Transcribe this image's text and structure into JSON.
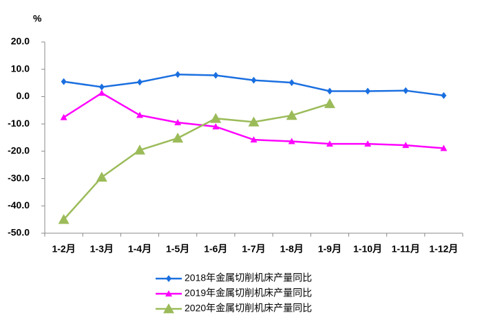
{
  "chart_data": {
    "type": "line",
    "y_label": "%",
    "categories": [
      "1-2月",
      "1-3月",
      "1-4月",
      "1-5月",
      "1-6月",
      "1-7月",
      "1-8月",
      "1-9月",
      "1-10月",
      "1-11月",
      "1-12月"
    ],
    "series": [
      {
        "name": "2018年金属切削机床产量同比",
        "color": "#1a6fe0",
        "marker": "diamond",
        "values": [
          5.5,
          3.5,
          5.3,
          8.1,
          7.8,
          6.0,
          5.1,
          2.0,
          2.0,
          2.2,
          0.4
        ]
      },
      {
        "name": "2019年金属切削机床产量同比",
        "color": "#ff00ff",
        "marker": "triangle",
        "values": [
          -7.6,
          1.3,
          -6.8,
          -9.5,
          -11.0,
          -15.8,
          -16.4,
          -17.3,
          -17.3,
          -17.8,
          -18.9
        ]
      },
      {
        "name": "2020年金属切削机床产量同比",
        "color": "#9bbb59",
        "marker": "big-triangle",
        "values": [
          -45.0,
          -29.5,
          -19.6,
          -15.2,
          -8.0,
          -9.3,
          -6.9,
          -2.6,
          null,
          null,
          null
        ]
      }
    ],
    "ylim": [
      -50,
      20
    ],
    "yticks": [
      {
        "value": 20,
        "label": "20.0"
      },
      {
        "value": 10,
        "label": "10.0"
      },
      {
        "value": 0,
        "label": "0.0"
      },
      {
        "value": -10,
        "label": "-10.0"
      },
      {
        "value": -20,
        "label": "-20.0"
      },
      {
        "value": -30,
        "label": "-30.0"
      },
      {
        "value": -40,
        "label": "-40.0"
      },
      {
        "value": -50,
        "label": "-50.0"
      }
    ],
    "legend": "bottom"
  }
}
